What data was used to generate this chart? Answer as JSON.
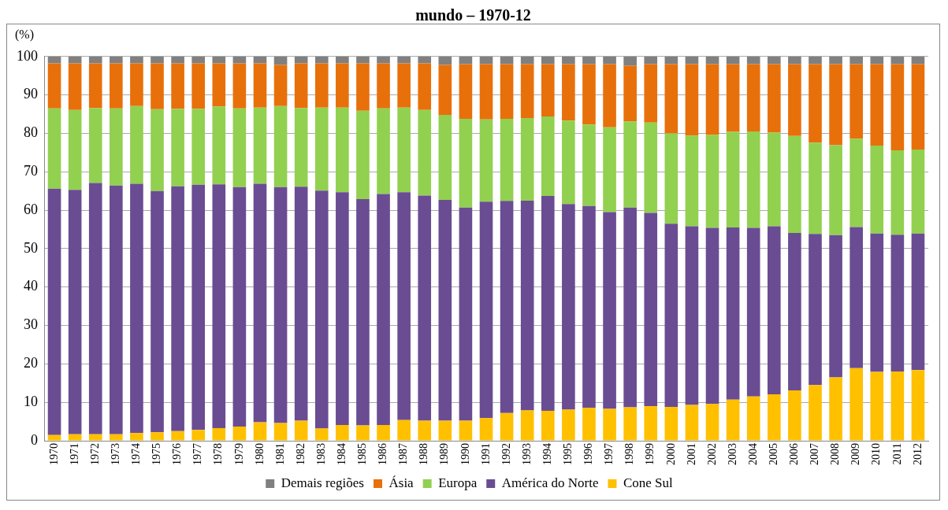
{
  "chart_data": {
    "type": "bar",
    "title": "mundo – 1970-12",
    "ylabel": "(%)",
    "stacked": true,
    "legend": "bottom",
    "grid": "y",
    "ylim": [
      0,
      100
    ],
    "yticks": [
      0,
      10,
      20,
      30,
      40,
      50,
      60,
      70,
      80,
      90,
      100
    ],
    "categories": [
      "1970",
      "1971",
      "1972",
      "1973",
      "1974",
      "1975",
      "1976",
      "1977",
      "1978",
      "1979",
      "1980",
      "1981",
      "1982",
      "1983",
      "1984",
      "1985",
      "1986",
      "1987",
      "1988",
      "1989",
      "1990",
      "1991",
      "1992",
      "1993",
      "1994",
      "1995",
      "1996",
      "1997",
      "1998",
      "1999",
      "2000",
      "2001",
      "2002",
      "2003",
      "2004",
      "2005",
      "2006",
      "2007",
      "2008",
      "2009",
      "2010",
      "2011",
      "2012"
    ],
    "series": [
      {
        "name": "Cone Sul",
        "color": "#ffc000",
        "values": [
          1.5,
          1.7,
          1.7,
          1.7,
          2,
          2.2,
          2.5,
          2.8,
          3.3,
          3.7,
          4.8,
          4.6,
          5.2,
          3.2,
          4.1,
          4,
          4.1,
          5.4,
          5.2,
          5.2,
          5.2,
          5.9,
          7.2,
          7.9,
          7.8,
          8.1,
          8.6,
          8.3,
          8.7,
          9,
          8.8,
          9.3,
          9.6,
          10.7,
          11.5,
          12.1,
          13.1,
          14.5,
          16.5,
          18.9,
          17.9,
          18,
          18.4
        ]
      },
      {
        "name": "América do Norte",
        "color": "#6a4c93",
        "values": [
          64.1,
          63.6,
          65.4,
          64.7,
          64.9,
          62.8,
          63.7,
          63.8,
          63.4,
          62.3,
          62.1,
          61.4,
          60.9,
          61.9,
          60.6,
          58.9,
          60.1,
          59.3,
          58.6,
          57.5,
          55.5,
          56.3,
          55.2,
          54.6,
          55.9,
          53.5,
          52.5,
          51.2,
          52,
          50.3,
          47.7,
          46.5,
          45.8,
          44.8,
          43.9,
          43.7,
          41,
          39.3,
          37,
          36.7,
          36,
          35.6,
          35.5
        ]
      },
      {
        "name": "Europa",
        "color": "#92d050",
        "values": [
          20.9,
          20.8,
          19.5,
          20.1,
          20.2,
          21.3,
          20.2,
          19.8,
          20.3,
          20.5,
          19.8,
          21.1,
          20.5,
          21.6,
          22,
          23,
          22.3,
          22,
          22.3,
          22.1,
          23.1,
          21.4,
          21.4,
          21.5,
          20.7,
          21.7,
          21.2,
          22.1,
          22.4,
          23.5,
          23.5,
          23.6,
          24.2,
          24.9,
          25.1,
          24.4,
          25.2,
          23.8,
          23.4,
          23,
          22.9,
          22,
          21.9
        ]
      },
      {
        "name": "Ásia",
        "color": "#e8700a",
        "values": [
          11.7,
          12.1,
          11.6,
          11.7,
          11.1,
          11.9,
          11.8,
          11.8,
          11.2,
          11.7,
          11.5,
          10.7,
          11.6,
          11.5,
          11.5,
          12.3,
          11.7,
          11.5,
          12.1,
          13,
          14.2,
          14.4,
          14.2,
          14,
          13.6,
          14.7,
          15.7,
          16.4,
          14.5,
          15.2,
          18,
          18.6,
          18.4,
          17.6,
          17.5,
          17.8,
          18.7,
          20.4,
          21.1,
          19.4,
          21.2,
          22.4,
          22.2
        ]
      },
      {
        "name": "Demais regiões",
        "color": "#808080",
        "values": [
          1.8,
          1.8,
          1.8,
          1.8,
          1.8,
          1.8,
          1.8,
          1.8,
          1.8,
          1.8,
          1.8,
          2.2,
          1.8,
          1.8,
          1.8,
          1.8,
          1.8,
          1.8,
          1.8,
          2.2,
          2,
          2,
          2,
          2,
          2,
          2,
          2,
          2,
          2.4,
          2,
          2,
          2,
          2,
          2,
          2,
          2,
          2,
          2,
          2,
          2,
          2,
          2,
          2
        ]
      }
    ]
  }
}
